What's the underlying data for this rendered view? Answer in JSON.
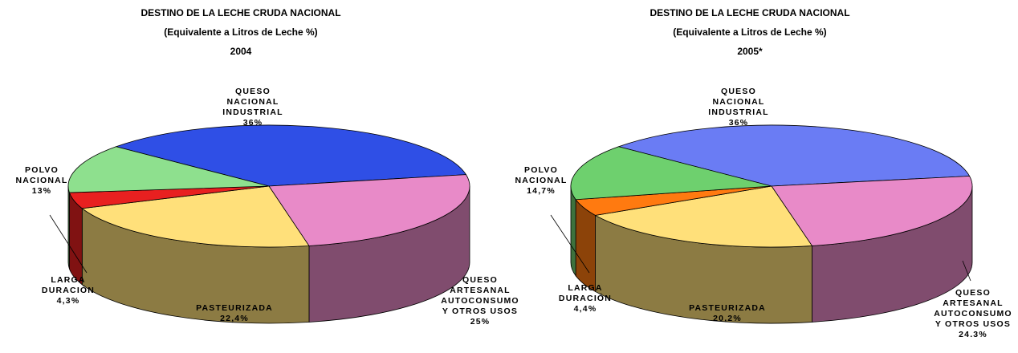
{
  "chart_data": [
    {
      "type": "pie3d",
      "title": "DESTINO DE LA LECHE CRUDA NACIONAL",
      "subtitle": "(Equivalente a Litros de Leche %)",
      "period": "2004",
      "categories": [
        "QUESO\nNACIONAL\nINDUSTRIAL",
        "QUESO\nARTESANAL\nAUTOCONSUMO\nY OTROS USOS",
        "PASTEURIZADA",
        "LARGA\nDURACIÓN",
        "POLVO\nNACIONAL"
      ],
      "values": [
        36,
        25,
        22.4,
        4.3,
        13
      ],
      "value_labels": [
        "36%",
        "25%",
        "22,4%",
        "4,3%",
        "13%"
      ],
      "colors": [
        "#2f4fe6",
        "#e88ac8",
        "#ffe07a",
        "#e82020",
        "#8ee08e"
      ]
    },
    {
      "type": "pie3d",
      "title": "DESTINO DE LA LECHE CRUDA NACIONAL",
      "subtitle": "(Equivalente a Litros de Leche %)",
      "period": "2005*",
      "categories": [
        "QUESO\nNACIONAL\nINDUSTRIAL",
        "QUESO\nARTESANAL\nAUTOCONSUMO\nY OTROS USOS",
        "PASTEURIZADA",
        "LARGA\nDURACIÓN",
        "POLVO\nNACIONAL"
      ],
      "values": [
        36,
        24.3,
        20.2,
        4.4,
        14.7
      ],
      "value_labels": [
        "36%",
        "24.3%",
        "20,2%",
        "4,4%",
        "14,7%"
      ],
      "colors": [
        "#6a7cf4",
        "#e88ac8",
        "#ffe07a",
        "#ff7a10",
        "#6ed06e"
      ]
    }
  ]
}
